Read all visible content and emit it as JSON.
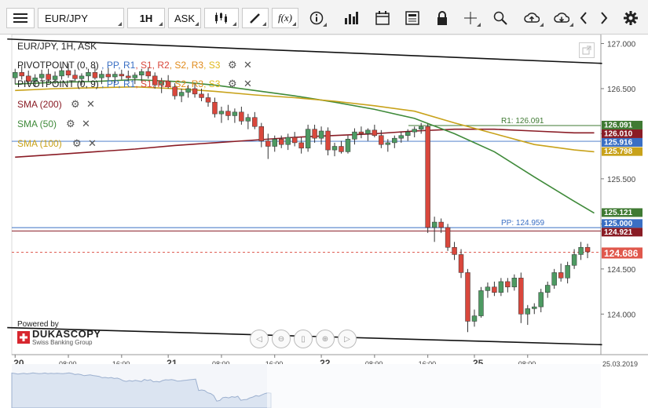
{
  "toolbar": {
    "instrument": "EUR/JPY",
    "period": "1H",
    "side": "ASK",
    "icons": [
      "menu-icon",
      "candles-icon",
      "draw-icon",
      "fx-icon",
      "info-icon",
      "volume-icon",
      "calendar-icon",
      "news-icon",
      "lock-icon",
      "crosshair-icon",
      "zoom-icon",
      "upload-icon",
      "download-icon",
      "left-icon",
      "right-icon",
      "gear-icon"
    ]
  },
  "chart": {
    "title": "EUR/JPY, 1H, ASK",
    "indicators": [
      {
        "name": "PIVOTPOINT (0, 8)",
        "keys": [
          ", PP",
          ", R1",
          ", S1",
          ", R2",
          ", S2",
          ", R3",
          ", S3"
        ]
      },
      {
        "name": "PIVOTPOINT (0, 9)",
        "keys": [
          ", PP",
          ", R1",
          ", S1",
          ", R2",
          ", S2",
          ", R3",
          ", S3"
        ]
      },
      {
        "name": "SMA (200)",
        "color": "#8a1c25"
      },
      {
        "name": "SMA (50)",
        "color": "#3f8a3a"
      },
      {
        "name": "SMA (100)",
        "color": "#c8a21a"
      }
    ],
    "pivot_labels": {
      "r1": "R1: 126.091",
      "pp": "PP: 124.959"
    },
    "price_badges": [
      {
        "value": "126.091",
        "color": "#3f7a33"
      },
      {
        "value": "126.010",
        "color": "#8a1c25"
      },
      {
        "value": "125.916",
        "color": "#3a6fc4"
      },
      {
        "value": "125.798",
        "color": "#c8a21a"
      },
      {
        "value": "125.121",
        "color": "#3f7a33"
      },
      {
        "value": "125.000",
        "color": "#3a6fc4"
      },
      {
        "value": "124.921",
        "color": "#8a1c25"
      },
      {
        "value": "124.686",
        "color": "#e0584c"
      }
    ],
    "logo": {
      "powered": "Powered by",
      "brand": "DUKASCOPY",
      "sub": "Swiss Banking Group"
    },
    "date_label": "25.03.2019",
    "colors": {
      "up": "#4d9a62",
      "down": "#d9473c",
      "sma200": "#8a1c25",
      "sma50": "#3f8a3a",
      "sma100": "#c8a21a",
      "pivot": "#3a6fc4"
    }
  },
  "chart_data": {
    "type": "candlestick",
    "instrument": "EUR/JPY",
    "timeframe": "1H",
    "y_ticks": [
      "127.000",
      "126.500",
      "126.000",
      "125.500",
      "125.000",
      "124.500",
      "124.000"
    ],
    "x_ticks": [
      "20",
      "08:00",
      "16:00",
      "21",
      "08:00",
      "16:00",
      "22",
      "08:00",
      "16:00",
      "25",
      "08:00"
    ],
    "ylim": [
      123.55,
      127.1
    ],
    "candles": [
      [
        126.62,
        126.72,
        126.55,
        126.68
      ],
      [
        126.68,
        126.75,
        126.6,
        126.64
      ],
      [
        126.64,
        126.7,
        126.55,
        126.58
      ],
      [
        126.58,
        126.66,
        126.52,
        126.62
      ],
      [
        126.62,
        126.71,
        126.58,
        126.66
      ],
      [
        126.66,
        126.72,
        126.57,
        126.6
      ],
      [
        126.6,
        126.69,
        126.55,
        126.64
      ],
      [
        126.64,
        126.74,
        126.6,
        126.7
      ],
      [
        126.7,
        126.78,
        126.62,
        126.65
      ],
      [
        126.65,
        126.71,
        126.58,
        126.61
      ],
      [
        126.61,
        126.67,
        126.54,
        126.64
      ],
      [
        126.64,
        126.72,
        126.58,
        126.68
      ],
      [
        126.68,
        126.74,
        126.6,
        126.62
      ],
      [
        126.62,
        126.7,
        126.55,
        126.66
      ],
      [
        126.66,
        126.73,
        126.59,
        126.63
      ],
      [
        126.63,
        126.69,
        126.56,
        126.66
      ],
      [
        126.66,
        126.71,
        126.6,
        126.64
      ],
      [
        126.64,
        126.7,
        126.58,
        126.62
      ],
      [
        126.62,
        126.68,
        126.55,
        126.65
      ],
      [
        126.65,
        126.72,
        126.58,
        126.69
      ],
      [
        126.69,
        126.74,
        126.61,
        126.64
      ],
      [
        126.64,
        126.68,
        126.5,
        126.54
      ],
      [
        126.54,
        126.62,
        126.45,
        126.58
      ],
      [
        126.58,
        126.65,
        126.5,
        126.52
      ],
      [
        126.52,
        126.56,
        126.38,
        126.42
      ],
      [
        126.42,
        126.5,
        126.35,
        126.46
      ],
      [
        126.46,
        126.54,
        126.4,
        126.5
      ],
      [
        126.5,
        126.56,
        126.4,
        126.44
      ],
      [
        126.44,
        126.5,
        126.36,
        126.4
      ],
      [
        126.4,
        126.45,
        126.3,
        126.35
      ],
      [
        126.35,
        126.4,
        126.18,
        126.22
      ],
      [
        126.22,
        126.3,
        126.12,
        126.25
      ],
      [
        126.25,
        126.32,
        126.15,
        126.2
      ],
      [
        126.2,
        126.28,
        126.12,
        126.24
      ],
      [
        126.24,
        126.3,
        126.1,
        126.14
      ],
      [
        126.14,
        126.22,
        126.05,
        126.18
      ],
      [
        126.18,
        126.24,
        126.05,
        126.08
      ],
      [
        126.08,
        126.12,
        125.85,
        125.92
      ],
      [
        125.92,
        126.0,
        125.72,
        125.86
      ],
      [
        125.86,
        125.98,
        125.8,
        125.94
      ],
      [
        125.94,
        125.98,
        125.84,
        125.88
      ],
      [
        125.88,
        126.0,
        125.82,
        125.96
      ],
      [
        125.96,
        126.02,
        125.86,
        125.9
      ],
      [
        125.9,
        125.96,
        125.78,
        125.84
      ],
      [
        125.84,
        126.1,
        125.8,
        126.05
      ],
      [
        126.05,
        126.1,
        125.9,
        125.95
      ],
      [
        125.95,
        126.08,
        125.88,
        126.03
      ],
      [
        126.03,
        126.07,
        125.76,
        125.82
      ],
      [
        125.82,
        125.9,
        125.75,
        125.86
      ],
      [
        125.86,
        125.92,
        125.78,
        125.8
      ],
      [
        125.8,
        125.98,
        125.78,
        125.94
      ],
      [
        125.94,
        126.06,
        125.88,
        126.02
      ],
      [
        126.02,
        126.08,
        125.95,
        126.0
      ],
      [
        126.0,
        126.06,
        125.92,
        126.04
      ],
      [
        126.04,
        126.1,
        125.96,
        125.98
      ],
      [
        125.98,
        126.04,
        125.84,
        125.88
      ],
      [
        125.88,
        125.94,
        125.8,
        125.9
      ],
      [
        125.9,
        125.98,
        125.84,
        125.95
      ],
      [
        125.95,
        126.02,
        125.9,
        125.98
      ],
      [
        125.98,
        126.05,
        125.92,
        126.02
      ],
      [
        126.02,
        126.08,
        125.96,
        126.05
      ],
      [
        126.05,
        126.12,
        126.0,
        126.08
      ],
      [
        126.08,
        126.11,
        124.9,
        124.96
      ],
      [
        124.96,
        125.08,
        124.8,
        125.02
      ],
      [
        125.02,
        125.06,
        124.9,
        124.96
      ],
      [
        124.96,
        125.0,
        124.7,
        124.74
      ],
      [
        124.74,
        124.8,
        124.6,
        124.66
      ],
      [
        124.66,
        124.72,
        124.4,
        124.46
      ],
      [
        124.46,
        124.5,
        123.8,
        123.92
      ],
      [
        123.92,
        124.05,
        123.86,
        123.98
      ],
      [
        123.98,
        124.3,
        123.96,
        124.26
      ],
      [
        124.26,
        124.35,
        124.18,
        124.3
      ],
      [
        124.3,
        124.36,
        124.2,
        124.24
      ],
      [
        124.24,
        124.4,
        124.2,
        124.36
      ],
      [
        124.36,
        124.4,
        124.24,
        124.3
      ],
      [
        124.3,
        124.44,
        124.26,
        124.4
      ],
      [
        124.4,
        124.46,
        123.9,
        124.0
      ],
      [
        124.0,
        124.1,
        123.88,
        124.06
      ],
      [
        124.06,
        124.12,
        124.0,
        124.08
      ],
      [
        124.08,
        124.28,
        124.02,
        124.24
      ],
      [
        124.24,
        124.36,
        124.18,
        124.32
      ],
      [
        124.32,
        124.5,
        124.28,
        124.46
      ],
      [
        124.46,
        124.56,
        124.36,
        124.4
      ],
      [
        124.4,
        124.58,
        124.34,
        124.54
      ],
      [
        124.54,
        124.72,
        124.5,
        124.66
      ],
      [
        124.66,
        124.8,
        124.6,
        124.74
      ],
      [
        124.74,
        124.78,
        124.62,
        124.69
      ]
    ],
    "sma200": [
      [
        0,
        125.74
      ],
      [
        6,
        125.77
      ],
      [
        12,
        125.8
      ],
      [
        18,
        125.83
      ],
      [
        24,
        125.87
      ],
      [
        30,
        125.9
      ],
      [
        36,
        125.93
      ],
      [
        42,
        125.96
      ],
      [
        48,
        125.98
      ],
      [
        54,
        126.0
      ],
      [
        60,
        126.03
      ],
      [
        66,
        126.05
      ],
      [
        72,
        126.05
      ],
      [
        78,
        126.03
      ],
      [
        84,
        126.01
      ],
      [
        87,
        126.01
      ]
    ],
    "sma50": [
      [
        0,
        126.55
      ],
      [
        6,
        126.57
      ],
      [
        12,
        126.58
      ],
      [
        18,
        126.6
      ],
      [
        24,
        126.58
      ],
      [
        30,
        126.54
      ],
      [
        36,
        126.48
      ],
      [
        42,
        126.42
      ],
      [
        48,
        126.35
      ],
      [
        54,
        126.27
      ],
      [
        60,
        126.17
      ],
      [
        66,
        126.0
      ],
      [
        72,
        125.8
      ],
      [
        78,
        125.52
      ],
      [
        84,
        125.25
      ],
      [
        87,
        125.12
      ]
    ],
    "sma100": [
      [
        0,
        126.48
      ],
      [
        6,
        126.5
      ],
      [
        12,
        126.51
      ],
      [
        18,
        126.52
      ],
      [
        24,
        126.5
      ],
      [
        30,
        126.47
      ],
      [
        36,
        126.43
      ],
      [
        42,
        126.4
      ],
      [
        48,
        126.36
      ],
      [
        54,
        126.31
      ],
      [
        60,
        126.25
      ],
      [
        66,
        126.12
      ],
      [
        72,
        126.0
      ],
      [
        78,
        125.88
      ],
      [
        84,
        125.82
      ],
      [
        87,
        125.8
      ]
    ],
    "pivot_r1": 126.091,
    "pivot_pp": 124.959,
    "channel_upper": [
      [
        0,
        127.05
      ],
      [
        87,
        126.78
      ]
    ],
    "channel_lower": [
      [
        0,
        123.85
      ],
      [
        87,
        123.66
      ]
    ],
    "last_price": 124.686,
    "legend": "top-left",
    "grid": false
  }
}
